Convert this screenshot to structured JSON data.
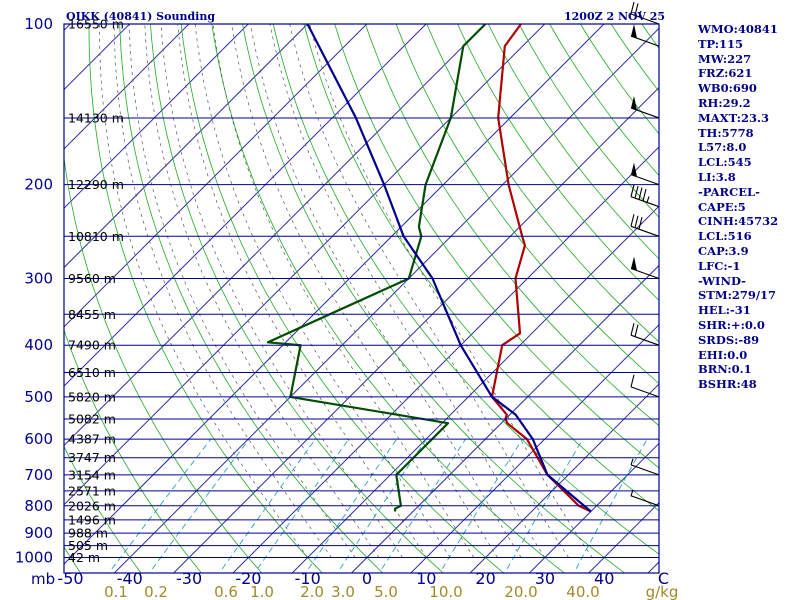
{
  "header": {
    "station": "OIKK (40841) Sounding",
    "time": "1200Z  2 NOV 25"
  },
  "indices": [
    "WMO:40841",
    "TP:115",
    "MW:227",
    "FRZ:621",
    "WB0:690",
    "RH:29.2",
    "MAXT:23.3",
    "TH:5778",
    "L57:8.0",
    "LCL:545",
    "LI:3.8",
    "-PARCEL-",
    "CAPE:5",
    "CINH:45732",
    "LCL:516",
    "CAP:3.9",
    "LFC:-1",
    "-WIND-",
    "STM:279/17",
    "HEL:-31",
    "SHR:+:0.0",
    "SRDS:-89",
    "EHI:0.0",
    "BRN:0.1",
    "BSHR:48"
  ],
  "chart_data": {
    "type": "skew-t",
    "x_axis": {
      "label": "C",
      "min": -50,
      "max": 50,
      "ticks": [
        -50,
        -40,
        -30,
        -20,
        -10,
        0,
        10,
        20,
        30,
        40
      ],
      "tick_labels": [
        "-50",
        "-40",
        "-30",
        "-20",
        "-10",
        "0",
        "10",
        "20",
        "30",
        "40",
        "C"
      ]
    },
    "y_axis": {
      "label": "mb",
      "scale": "log",
      "pressure_ticks": [
        100,
        200,
        300,
        400,
        500,
        600,
        700,
        800,
        900,
        1000
      ],
      "range": [
        1050,
        100
      ]
    },
    "mixing_ratio_labels": [
      "0.1",
      "0.2",
      "0.6",
      "1.0",
      "2.0",
      "3.0",
      "5.0",
      "10.0",
      "20.0",
      "40.0"
    ],
    "mixing_ratio_values": [
      0.1,
      0.2,
      0.6,
      1.0,
      2.0,
      3.0,
      5.0,
      10.0,
      20.0,
      40.0
    ],
    "mixing_ratio_unit": "g/kg",
    "isobar_heights": [
      {
        "p": 100,
        "h": "16550 m"
      },
      {
        "p": 150,
        "h": "14130 m"
      },
      {
        "p": 200,
        "h": "12290 m"
      },
      {
        "p": 250,
        "h": "10810 m"
      },
      {
        "p": 300,
        "h": "9560 m"
      },
      {
        "p": 350,
        "h": "8455 m"
      },
      {
        "p": 400,
        "h": "7490 m"
      },
      {
        "p": 450,
        "h": "6510 m"
      },
      {
        "p": 500,
        "h": "5820 m"
      },
      {
        "p": 550,
        "h": "5082 m"
      },
      {
        "p": 600,
        "h": "4387 m"
      },
      {
        "p": 650,
        "h": "3747 m"
      },
      {
        "p": 700,
        "h": "3154 m"
      },
      {
        "p": 750,
        "h": "2571 m"
      },
      {
        "p": 800,
        "h": "2026 m"
      },
      {
        "p": 850,
        "h": "1496 m"
      },
      {
        "p": 900,
        "h": "988 m"
      },
      {
        "p": 950,
        "h": "505 m"
      },
      {
        "p": 1000,
        "h": "42 m"
      }
    ],
    "series": [
      {
        "name": "temperature",
        "color": "#b00000",
        "points": [
          [
            820,
            30
          ],
          [
            800,
            27
          ],
          [
            700,
            16.5
          ],
          [
            600,
            7
          ],
          [
            560,
            1
          ],
          [
            550,
            0
          ],
          [
            540,
            -0.5
          ],
          [
            500,
            -6
          ],
          [
            400,
            -13
          ],
          [
            380,
            -12
          ],
          [
            300,
            -22
          ],
          [
            260,
            -26
          ],
          [
            250,
            -28
          ],
          [
            200,
            -39
          ],
          [
            150,
            -52
          ],
          [
            110,
            -63
          ],
          [
            100,
            -64
          ]
        ]
      },
      {
        "name": "dewpoint",
        "color": "#004d00",
        "points": [
          [
            820,
            -3
          ],
          [
            810,
            -3.5
          ],
          [
            800,
            -3
          ],
          [
            700,
            -9
          ],
          [
            560,
            -9
          ],
          [
            540,
            -19
          ],
          [
            500,
            -40
          ],
          [
            400,
            -47
          ],
          [
            395,
            -53
          ],
          [
            300,
            -40
          ],
          [
            250,
            -45
          ],
          [
            240,
            -47
          ],
          [
            200,
            -53
          ],
          [
            150,
            -60
          ],
          [
            110,
            -70
          ],
          [
            100,
            -70
          ]
        ]
      },
      {
        "name": "parcel",
        "color": "#00008b",
        "points": [
          [
            820,
            30
          ],
          [
            700,
            16.5
          ],
          [
            600,
            8
          ],
          [
            540,
            1
          ],
          [
            500,
            -6
          ],
          [
            400,
            -20
          ],
          [
            300,
            -36
          ],
          [
            250,
            -48
          ],
          [
            200,
            -60
          ],
          [
            150,
            -76
          ],
          [
            100,
            -100
          ]
        ]
      }
    ],
    "wind_barbs": [
      {
        "p": 100,
        "dir": 275,
        "spd": 25
      },
      {
        "p": 110,
        "dir": 275,
        "spd": 50
      },
      {
        "p": 150,
        "dir": 275,
        "spd": 50
      },
      {
        "p": 200,
        "dir": 275,
        "spd": 50
      },
      {
        "p": 220,
        "dir": 270,
        "spd": 45
      },
      {
        "p": 250,
        "dir": 270,
        "spd": 30
      },
      {
        "p": 300,
        "dir": 270,
        "spd": 50
      },
      {
        "p": 400,
        "dir": 260,
        "spd": 20
      },
      {
        "p": 500,
        "dir": 250,
        "spd": 10
      },
      {
        "p": 700,
        "dir": 350,
        "spd": 5
      },
      {
        "p": 800,
        "dir": 260,
        "spd": 5
      }
    ]
  }
}
